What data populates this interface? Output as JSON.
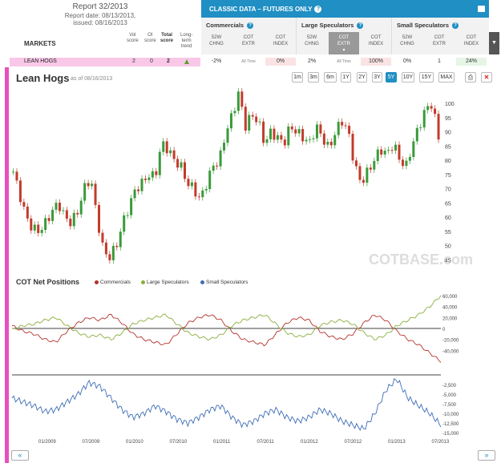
{
  "report": {
    "title": "Report 32/2013",
    "date_line": "Report date: 08/13/2013,",
    "issued_line": "issued: 08/16/2013"
  },
  "markets_header": {
    "label": "MARKETS",
    "vol": [
      "Vol",
      "score"
    ],
    "oi": [
      "OI",
      "score"
    ],
    "total": [
      "Total",
      "score"
    ],
    "trend": [
      "Long-",
      "term",
      "trend"
    ]
  },
  "classic": {
    "title": "CLASSIC DATA – FUTURES ONLY",
    "groups": [
      {
        "title": "Commercials",
        "subs": [
          [
            "52W",
            "CHNG"
          ],
          [
            "COT",
            "EXTR"
          ],
          [
            "COT",
            "INDEX"
          ]
        ]
      },
      {
        "title": "Large Speculators",
        "subs": [
          [
            "52W",
            "CHNG"
          ],
          [
            "COT",
            "EXTR"
          ],
          [
            "COT",
            "INDEX"
          ]
        ]
      },
      {
        "title": "Small Speculators",
        "subs": [
          [
            "52W",
            "CHNG"
          ],
          [
            "COT",
            "EXTR"
          ],
          [
            "COT",
            "INDEX"
          ]
        ]
      }
    ]
  },
  "row": {
    "name": "LEAN HOGS",
    "vol": "2",
    "oi": "0",
    "total": "2",
    "comm_chng": "-2%",
    "comm_extr": "All Time",
    "comm_index": "0%",
    "large_chng": "2%",
    "large_extr": "All Time",
    "large_index": "100%",
    "small_chng": "0%",
    "small_extr": "1",
    "small_index": "24%"
  },
  "chart": {
    "title": "Lean Hogs",
    "as_of": "as of 08/16/2013",
    "ranges": [
      "1m",
      "3m",
      "6m",
      "1Y",
      "2Y",
      "3Y",
      "5Y",
      "10Y",
      "15Y",
      "MAX"
    ],
    "active_range": "5Y",
    "watermark": "COTBASE.com"
  },
  "cot_legend": {
    "title": "COT Net Positions",
    "items": [
      {
        "label": "Commercials",
        "color": "#b5332d"
      },
      {
        "label": "Large Speculators",
        "color": "#8aae3c"
      },
      {
        "label": "Small Speculators",
        "color": "#3d6db5"
      }
    ]
  },
  "nav": {
    "prev": "«",
    "next": "»"
  },
  "chart_data": [
    {
      "type": "candlestick",
      "title": "Lean Hogs",
      "ylim": [
        42,
        104
      ],
      "y_ticks": [
        45,
        50,
        55,
        60,
        65,
        70,
        75,
        80,
        85,
        90,
        95,
        100
      ],
      "x_ticks": [
        "01/2009",
        "07/2009",
        "01/2010",
        "07/2010",
        "01/2011",
        "07/2011",
        "01/2012",
        "07/2012",
        "01/2013",
        "07/2013"
      ],
      "close_path": [
        76,
        68,
        60,
        56,
        55,
        58,
        62,
        65,
        60,
        58,
        62,
        70,
        74,
        60,
        48,
        46,
        50,
        58,
        64,
        70,
        72,
        75,
        74,
        86,
        84,
        80,
        78,
        72,
        70,
        66,
        72,
        78,
        80,
        90,
        96,
        104,
        92,
        96,
        94,
        86,
        90,
        88,
        86,
        92,
        90,
        88,
        86,
        92,
        88,
        84,
        90,
        94,
        90,
        78,
        72,
        76,
        80,
        84,
        82,
        86,
        80,
        78,
        86,
        92,
        98,
        100,
        88
      ]
    },
    {
      "type": "line",
      "title": "COT Net Positions",
      "y_ticks": [
        60000,
        40000,
        20000,
        0,
        -20000,
        -40000
      ],
      "series": [
        {
          "name": "Commercials",
          "values": [
            5000,
            -5000,
            -10000,
            -20000,
            -25000,
            -5000,
            10000,
            20000,
            15000,
            25000,
            10000,
            -10000,
            -20000,
            -25000,
            -30000,
            -10000,
            10000,
            20000,
            25000,
            15000,
            -5000,
            -20000,
            -25000,
            -30000,
            -10000,
            10000,
            20000,
            15000,
            -5000,
            -15000,
            -20000,
            -10000,
            10000,
            25000,
            15000,
            -5000,
            -20000,
            -30000,
            -45000,
            -60000
          ]
        },
        {
          "name": "Large Speculators",
          "values": [
            -2000,
            5000,
            8000,
            15000,
            20000,
            5000,
            -8000,
            -15000,
            -12000,
            -20000,
            -8000,
            8000,
            15000,
            20000,
            25000,
            8000,
            -8000,
            -15000,
            -20000,
            -12000,
            5000,
            15000,
            20000,
            25000,
            8000,
            -8000,
            -15000,
            -12000,
            5000,
            12000,
            15000,
            8000,
            -8000,
            -20000,
            -12000,
            5000,
            15000,
            25000,
            40000,
            60000
          ]
        }
      ]
    },
    {
      "type": "line",
      "y_ticks": [
        -2500,
        -5000,
        -7500,
        -10000,
        -12500,
        -15000
      ],
      "series": [
        {
          "name": "Small Speculators",
          "values": [
            -6000,
            -7000,
            -8000,
            -9500,
            -9000,
            -7000,
            -5000,
            -2000,
            -3000,
            -6000,
            -9000,
            -11000,
            -10000,
            -8000,
            -9500,
            -11500,
            -12500,
            -11000,
            -9000,
            -8000,
            -11000,
            -13000,
            -12000,
            -10000,
            -9000,
            -11000,
            -12000,
            -11000,
            -9000,
            -10000,
            -12000,
            -13000,
            -14000,
            -10000,
            -4000,
            -1000,
            -6000,
            -8000,
            -10000,
            -13000
          ]
        }
      ]
    }
  ]
}
